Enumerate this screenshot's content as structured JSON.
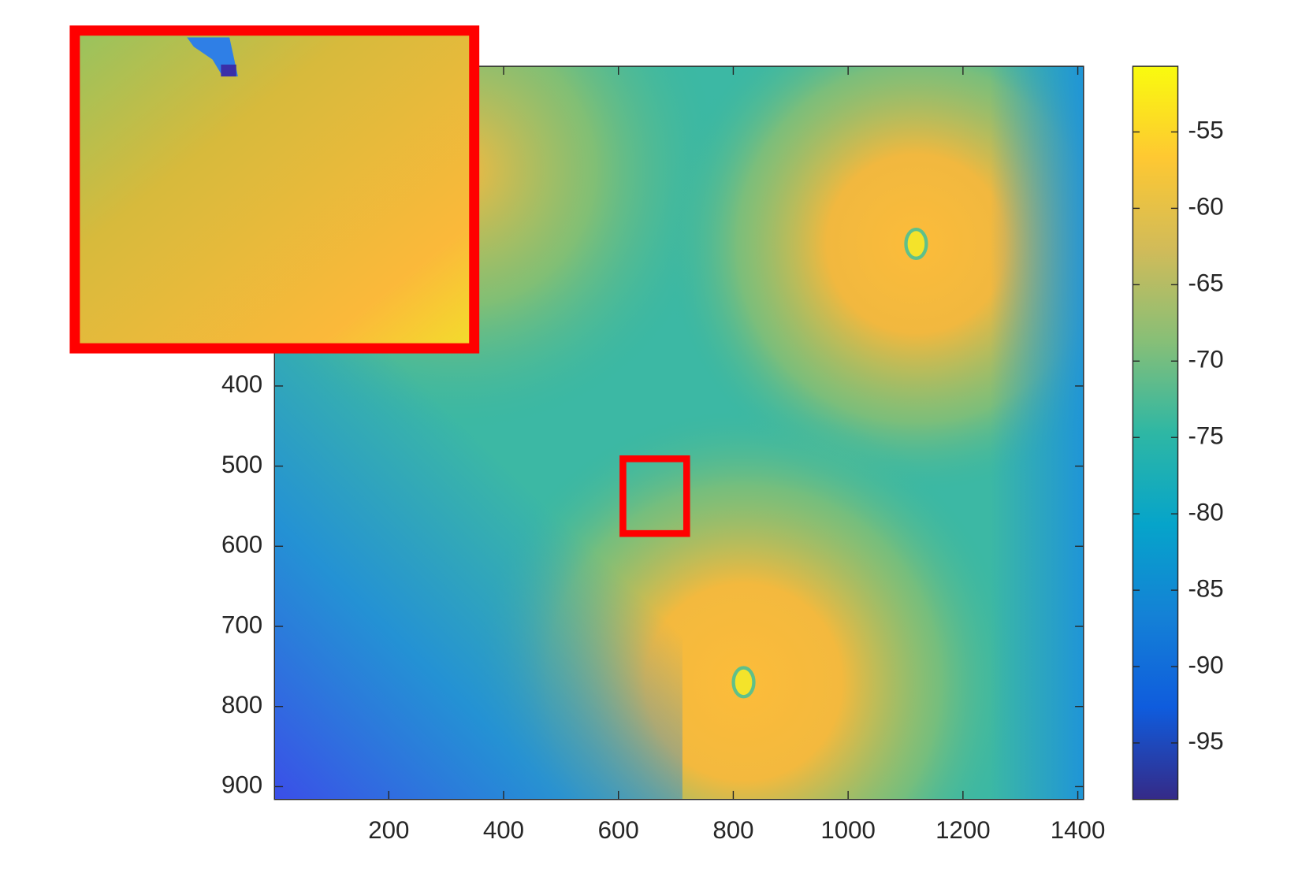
{
  "chart_data": {
    "type": "heatmap",
    "colormap": "parula",
    "xlim": [
      1,
      1410
    ],
    "xticks": [
      200,
      400,
      600,
      800,
      1000,
      1200,
      1400
    ],
    "ylim": [
      1,
      916
    ],
    "yticks": [
      400,
      500,
      600,
      700,
      800,
      900
    ],
    "y_reversed": true,
    "clim": [
      -98.7,
      -50.7
    ],
    "cticks": [
      -95,
      -90,
      -85,
      -80,
      -75,
      -70,
      -65,
      -60,
      -55
    ]
  }
}
